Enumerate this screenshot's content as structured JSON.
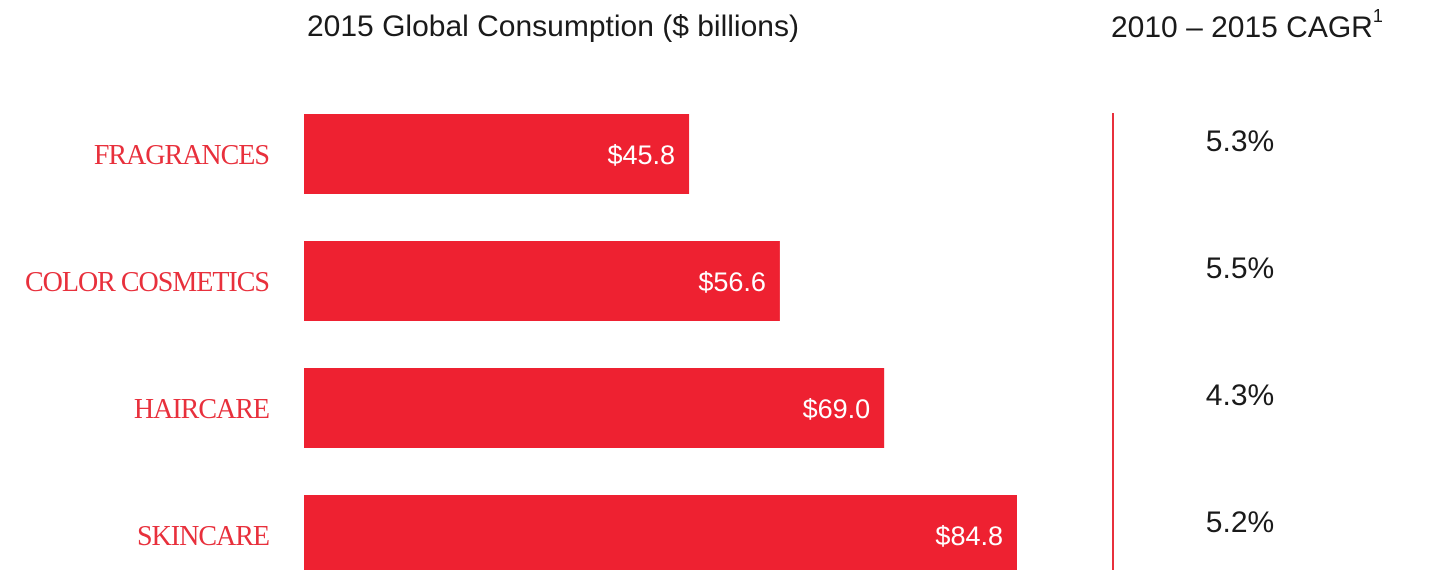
{
  "title_left": "2015 Global Consumption ($ billions)",
  "title_right": "2010 – 2015 CAGR",
  "title_right_footnote": "1",
  "colors": {
    "bar": "#ee2131",
    "category_label": "#e8303c",
    "divider": "#e8303c"
  },
  "chart_data": {
    "type": "bar",
    "orientation": "horizontal",
    "categories": [
      "FRAGRANCES",
      "COLOR COSMETICS",
      "HAIRCARE",
      "SKINCARE"
    ],
    "values": [
      45.8,
      56.6,
      69.0,
      84.8
    ],
    "value_labels": [
      "$45.8",
      "$56.6",
      "$69.0",
      "$84.8"
    ],
    "cagr_labels": [
      "5.3%",
      "5.5%",
      "4.3%",
      "5.2%"
    ],
    "cagr_values": [
      5.3,
      5.5,
      4.3,
      5.2
    ],
    "xlim": [
      0,
      84.8
    ],
    "grid": false,
    "legend": "none"
  }
}
